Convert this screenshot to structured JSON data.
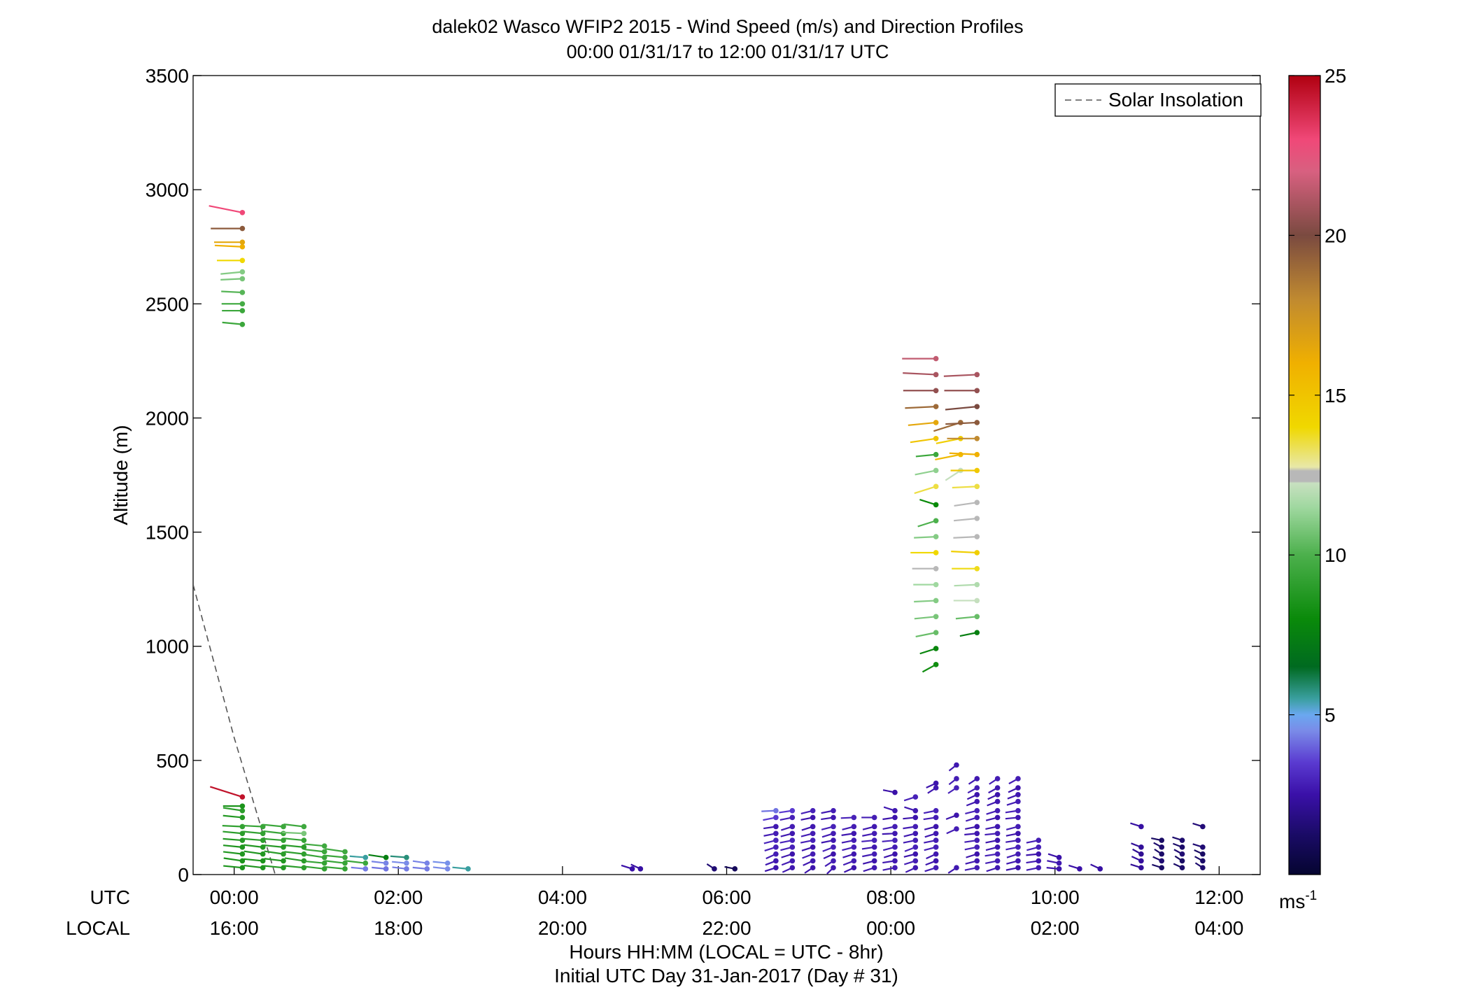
{
  "chart_data": {
    "type": "scatter",
    "title": "dalek02 Wasco WFIP2 2015 - Wind Speed (m/s) and Direction Profiles",
    "subtitle": "00:00 01/31/17 to 12:00 01/31/17  UTC",
    "ylabel": "Altitude (m)",
    "xlabel_line1": "Hours HH:MM  (LOCAL = UTC - 8hr)",
    "xlabel_line2": "Initial UTC Day 31-Jan-2017 (Day # 31)",
    "xlim": [
      -0.5,
      12.5
    ],
    "ylim": [
      0,
      3500
    ],
    "y_ticks": [
      "0",
      "500",
      "1000",
      "1500",
      "2000",
      "2500",
      "3000",
      "3500"
    ],
    "x_row_labels": {
      "utc": "UTC",
      "local": "LOCAL"
    },
    "x_ticks_utc": [
      "00:00",
      "02:00",
      "04:00",
      "06:00",
      "08:00",
      "10:00",
      "12:00"
    ],
    "x_ticks_local": [
      "16:00",
      "18:00",
      "20:00",
      "22:00",
      "00:00",
      "02:00",
      "04:00"
    ],
    "legend": {
      "entries": [
        "Solar Insolation"
      ],
      "position": "top-right"
    },
    "colorbar": {
      "min": 0,
      "max": 25,
      "ticks": [
        "5",
        "10",
        "15",
        "20",
        "25"
      ],
      "unit": "ms",
      "unit_sup": "-1"
    },
    "solar_insolation": {
      "x": [
        -0.5,
        0.0,
        0.5
      ],
      "y": [
        1270,
        600,
        0
      ]
    },
    "profiles": [
      {
        "t": 0.1,
        "z": [
          2410,
          2470,
          2500,
          2550,
          2610,
          2640,
          2690,
          2750,
          2770,
          2830,
          2900
        ],
        "s": [
          9.5,
          9.5,
          9.8,
          10.2,
          10.8,
          11,
          14,
          16,
          16.5,
          19.5,
          23
        ],
        "d": [
          280,
          270,
          270,
          275,
          265,
          260,
          270,
          275,
          270,
          270,
          290
        ]
      },
      {
        "t": 0.1,
        "z": [
          30,
          60,
          90,
          120,
          150,
          180,
          210,
          250,
          280,
          300,
          340
        ],
        "s": [
          8.5,
          8.5,
          8.7,
          8.6,
          8.8,
          9,
          9.2,
          8.8,
          9,
          8.5,
          24.5
        ],
        "d": [
          280,
          285,
          282,
          280,
          278,
          280,
          275,
          280,
          285,
          270,
          300
        ]
      },
      {
        "t": 0.35,
        "z": [
          30,
          60,
          90,
          120,
          150,
          180,
          210
        ],
        "s": [
          8.6,
          8.5,
          8.7,
          8.8,
          9,
          9.2,
          9.4
        ],
        "d": [
          282,
          280,
          285,
          282,
          278,
          280,
          275
        ]
      },
      {
        "t": 0.6,
        "z": [
          30,
          60,
          90,
          120,
          150,
          180,
          210
        ],
        "s": [
          8.8,
          8.7,
          9,
          8.9,
          9.2,
          9.4,
          9.5
        ],
        "d": [
          280,
          282,
          285,
          280,
          278,
          282,
          280
        ]
      },
      {
        "t": 0.85,
        "z": [
          30,
          60,
          90,
          120,
          150,
          180,
          210
        ],
        "s": [
          9,
          8.9,
          9.1,
          9,
          9.3,
          10.8,
          9.6
        ],
        "d": [
          280,
          285,
          282,
          280,
          280,
          275,
          282
        ]
      },
      {
        "t": 1.1,
        "z": [
          25,
          50,
          75,
          100,
          125
        ],
        "s": [
          9.2,
          9.3,
          9.4,
          9.5,
          9.6
        ],
        "d": [
          282,
          280,
          285,
          282,
          280
        ]
      },
      {
        "t": 1.35,
        "z": [
          25,
          50,
          75,
          100
        ],
        "s": [
          9.3,
          9.4,
          9.5,
          9.6
        ],
        "d": [
          280,
          282,
          280,
          285
        ]
      },
      {
        "t": 1.6,
        "z": [
          25,
          50,
          75
        ],
        "s": [
          4.3,
          9.5,
          5.5
        ],
        "d": [
          280,
          282,
          278
        ]
      },
      {
        "t": 1.85,
        "z": [
          25,
          50,
          75
        ],
        "s": [
          4.2,
          4.4,
          7.5
        ],
        "d": [
          280,
          282,
          285
        ]
      },
      {
        "t": 2.1,
        "z": [
          25,
          50,
          75
        ],
        "s": [
          4.3,
          4.5,
          5.8
        ],
        "d": [
          282,
          280,
          278
        ]
      },
      {
        "t": 2.35,
        "z": [
          25,
          50
        ],
        "s": [
          4.3,
          4.4
        ],
        "d": [
          280,
          285
        ]
      },
      {
        "t": 2.6,
        "z": [
          25,
          50
        ],
        "s": [
          4.5,
          4.6
        ],
        "d": [
          282,
          280
        ]
      },
      {
        "t": 2.85,
        "z": [
          25
        ],
        "s": [
          5.5
        ],
        "d": [
          280
        ]
      },
      {
        "t": 4.85,
        "z": [
          25
        ],
        "s": [
          2.5
        ],
        "d": [
          300
        ]
      },
      {
        "t": 4.95,
        "z": [
          25
        ],
        "s": [
          2.4
        ],
        "d": [
          310
        ]
      },
      {
        "t": 5.85,
        "z": [
          25
        ],
        "s": [
          1.5
        ],
        "d": [
          320
        ]
      },
      {
        "t": 6.1,
        "z": [
          25
        ],
        "s": [
          1
        ],
        "d": [
          290
        ]
      },
      {
        "t": 6.6,
        "z": [
          30,
          60,
          90,
          120,
          150,
          180,
          210,
          250,
          280
        ],
        "s": [
          2.6,
          2.7,
          2.8,
          2.9,
          3,
          2.8,
          2.7,
          3.5,
          4.2
        ],
        "d": [
          240,
          235,
          230,
          240,
          245,
          250,
          255,
          250,
          265
        ]
      },
      {
        "t": 6.8,
        "z": [
          30,
          60,
          90,
          120,
          150,
          180,
          210,
          250,
          280
        ],
        "s": [
          2.7,
          2.8,
          2.6,
          2.9,
          3,
          2.7,
          2.8,
          2.9,
          3.5
        ],
        "d": [
          230,
          235,
          240,
          245,
          250,
          245,
          240,
          250,
          255
        ]
      },
      {
        "t": 7.05,
        "z": [
          30,
          60,
          90,
          120,
          150,
          180,
          210,
          250,
          280
        ],
        "s": [
          2.6,
          2.7,
          2.8,
          2.6,
          2.9,
          2.8,
          2.7,
          2.6,
          2.9
        ],
        "d": [
          220,
          230,
          235,
          240,
          250,
          245,
          240,
          250,
          245
        ]
      },
      {
        "t": 7.3,
        "z": [
          30,
          60,
          90,
          120,
          150,
          180,
          210,
          250,
          280
        ],
        "s": [
          2.7,
          2.8,
          2.6,
          2.9,
          2.7,
          2.8,
          2.9,
          2.7,
          2.8
        ],
        "d": [
          210,
          220,
          230,
          235,
          250,
          240,
          245,
          255,
          250
        ]
      },
      {
        "t": 7.55,
        "z": [
          30,
          60,
          90,
          120,
          150,
          180,
          210,
          250
        ],
        "s": [
          2.6,
          2.8,
          2.7,
          2.9,
          2.8,
          2.7,
          2.8,
          2.9
        ],
        "d": [
          230,
          235,
          240,
          245,
          250,
          255,
          245,
          265
        ]
      },
      {
        "t": 7.8,
        "z": [
          30,
          60,
          90,
          120,
          150,
          180,
          210,
          250
        ],
        "s": [
          2.7,
          2.6,
          2.8,
          2.7,
          2.9,
          2.8,
          2.7,
          2.8
        ],
        "d": [
          240,
          245,
          250,
          255,
          260,
          250,
          245,
          270
        ]
      },
      {
        "t": 8.05,
        "z": [
          30,
          60,
          90,
          120,
          150,
          180,
          210,
          250,
          280,
          360
        ],
        "s": [
          2.8,
          2.7,
          2.6,
          2.8,
          2.9,
          2.7,
          2.8,
          2.6,
          2.7,
          2.5
        ],
        "d": [
          250,
          255,
          240,
          245,
          260,
          265,
          250,
          255,
          300,
          290
        ]
      },
      {
        "t": 8.3,
        "z": [
          30,
          60,
          90,
          120,
          150,
          180,
          210,
          250,
          280,
          340
        ],
        "s": [
          2.7,
          2.8,
          2.6,
          2.9,
          2.8,
          2.7,
          2.8,
          2.6,
          2.7,
          2.9
        ],
        "d": [
          230,
          240,
          245,
          235,
          250,
          245,
          255,
          260,
          300,
          240
        ]
      },
      {
        "t": 8.55,
        "z": [
          30,
          60,
          90,
          120,
          150,
          180,
          210,
          250,
          280,
          380,
          400
        ],
        "s": [
          2.8,
          2.6,
          2.7,
          2.9,
          2.8,
          2.7,
          2.6,
          2.8,
          2.9,
          2.7,
          2.6
        ],
        "d": [
          240,
          235,
          230,
          245,
          250,
          240,
          245,
          255,
          250,
          220,
          230
        ]
      },
      {
        "t": 8.8,
        "z": [
          30,
          200,
          260,
          380,
          420,
          480
        ],
        "s": [
          2.7,
          2.8,
          2.6,
          2.9,
          2.8,
          2.7
        ],
        "d": [
          220,
          230,
          235,
          220,
          215,
          215
        ]
      },
      {
        "t": 9.05,
        "z": [
          30,
          60,
          90,
          120,
          150,
          180,
          210,
          250,
          280,
          320,
          350,
          380,
          420
        ],
        "s": [
          2.8,
          2.7,
          2.6,
          2.9,
          2.8,
          2.7,
          2.6,
          2.8,
          2.9,
          2.7,
          2.6,
          2.8,
          2.7
        ],
        "d": [
          250,
          245,
          240,
          250,
          255,
          260,
          250,
          240,
          245,
          235,
          230,
          225,
          220
        ]
      },
      {
        "t": 9.3,
        "z": [
          30,
          60,
          90,
          120,
          150,
          180,
          210,
          250,
          280,
          320,
          350,
          380,
          420
        ],
        "s": [
          2.7,
          2.8,
          2.9,
          2.7,
          2.6,
          2.8,
          2.7,
          2.6,
          2.8,
          2.7,
          2.6,
          2.7,
          2.8
        ],
        "d": [
          240,
          250,
          255,
          245,
          250,
          260,
          250,
          245,
          240,
          235,
          230,
          225,
          220
        ]
      },
      {
        "t": 9.55,
        "z": [
          30,
          60,
          90,
          120,
          150,
          180,
          210,
          250,
          280,
          320,
          350,
          380,
          420
        ],
        "s": [
          2.6,
          2.7,
          2.8,
          2.9,
          2.7,
          2.6,
          2.8,
          2.7,
          2.9,
          2.8,
          2.7,
          2.6,
          2.8
        ],
        "d": [
          250,
          245,
          240,
          250,
          255,
          250,
          245,
          260,
          255,
          240,
          235,
          230,
          225
        ]
      },
      {
        "t": 9.8,
        "z": [
          30,
          60,
          90,
          120,
          150
        ],
        "s": [
          2.8,
          2.7,
          2.6,
          2.9,
          2.8
        ],
        "d": [
          250,
          255,
          260,
          245,
          250
        ]
      },
      {
        "t": 10.05,
        "z": [
          25,
          50,
          75
        ],
        "s": [
          2.6,
          2.7,
          2.5
        ],
        "d": [
          280,
          290,
          300
        ]
      },
      {
        "t": 10.3,
        "z": [
          25
        ],
        "s": [
          2.5
        ],
        "d": [
          300
        ]
      },
      {
        "t": 10.55,
        "z": [
          25
        ],
        "s": [
          2.4
        ],
        "d": [
          310
        ]
      },
      {
        "t": 11.05,
        "z": [
          30,
          60,
          90,
          120,
          210
        ],
        "s": [
          2.2,
          2.3,
          2.1,
          2.2,
          2.4
        ],
        "d": [
          300,
          310,
          315,
          305,
          300
        ]
      },
      {
        "t": 11.3,
        "z": [
          30,
          60,
          90,
          120,
          150
        ],
        "s": [
          1.2,
          1.5,
          1.3,
          1.4,
          1.2
        ],
        "d": [
          300,
          310,
          320,
          315,
          290
        ]
      },
      {
        "t": 11.55,
        "z": [
          30,
          60,
          90,
          120,
          150
        ],
        "s": [
          1.3,
          1.2,
          1.5,
          1.3,
          1.4
        ],
        "d": [
          310,
          320,
          315,
          305,
          300
        ]
      },
      {
        "t": 11.8,
        "z": [
          30,
          60,
          90,
          120,
          210
        ],
        "s": [
          1.4,
          1.3,
          1.2,
          1.5,
          1.6
        ],
        "d": [
          320,
          315,
          310,
          300,
          300
        ]
      }
    ],
    "upper_profiles": [
      {
        "t": 8.55,
        "z": [
          920,
          990,
          1060,
          1130,
          1200,
          1270,
          1340,
          1410,
          1480,
          1550,
          1620,
          1700,
          1770,
          1840,
          1910,
          1980,
          2050,
          2120,
          2190,
          2260
        ],
        "s": [
          8.2,
          7.8,
          10.5,
          10.8,
          11,
          11.5,
          12.5,
          14,
          11,
          10,
          8,
          13.5,
          11.2,
          9.5,
          15,
          16.5,
          19,
          20.5,
          21,
          21.5
        ],
        "d": [
          225,
          240,
          250,
          260,
          265,
          270,
          270,
          270,
          265,
          240,
          300,
          240,
          250,
          260,
          255,
          260,
          265,
          270,
          275,
          270
        ]
      },
      {
        "t": 8.85,
        "z": [
          1770,
          1840,
          1910,
          1980
        ],
        "s": [
          12.2,
          15.5,
          14.5,
          19
        ],
        "d": [
          220,
          250,
          250,
          240
        ]
      },
      {
        "t": 9.05,
        "z": [
          1060,
          1130,
          1200,
          1270,
          1340,
          1410,
          1480,
          1560,
          1630,
          1700,
          1770,
          1840,
          1910,
          1980,
          2050,
          2120,
          2190
        ],
        "s": [
          7.5,
          10.5,
          12.2,
          11.8,
          13.8,
          14.5,
          12.5,
          12.3,
          12.4,
          13.5,
          14.8,
          16,
          18,
          19.5,
          20,
          20.5,
          21
        ],
        "d": [
          250,
          260,
          270,
          265,
          270,
          275,
          265,
          260,
          255,
          265,
          270,
          275,
          270,
          265,
          260,
          270,
          265
        ]
      }
    ]
  }
}
